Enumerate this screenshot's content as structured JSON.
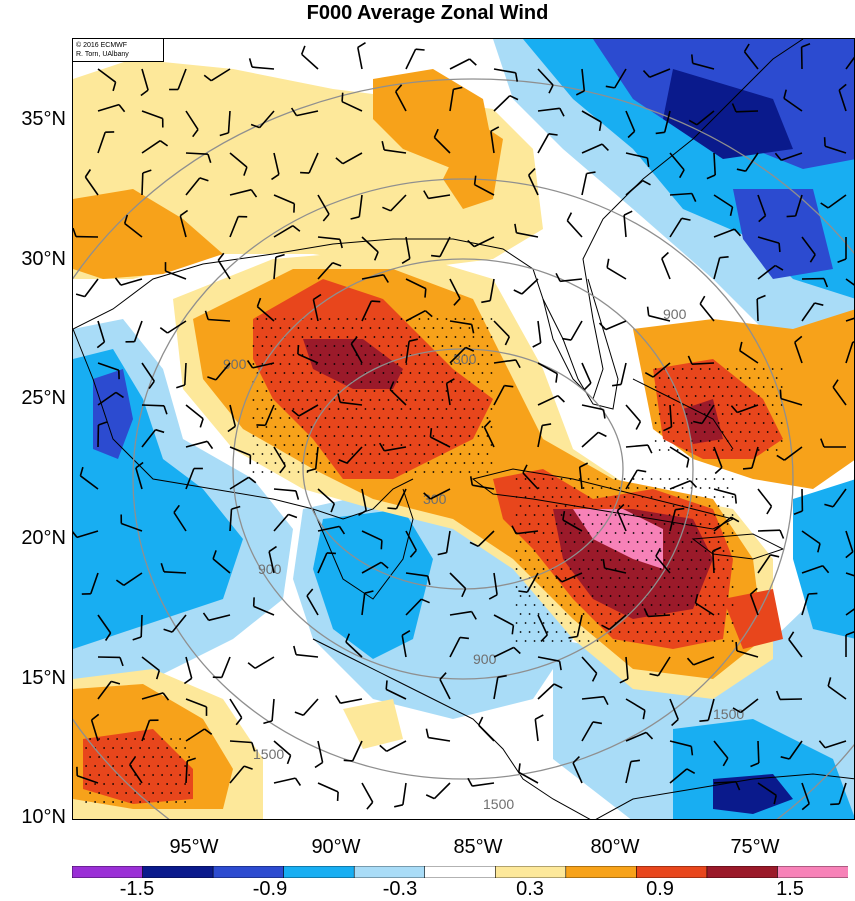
{
  "title": "F000 Average Zonal Wind",
  "credit": {
    "line1": "© 2016 ECMWF",
    "line2": "R. Torn, UAlbany"
  },
  "lat_labels": [
    "35°N",
    "30°N",
    "25°N",
    "20°N",
    "15°N",
    "10°N"
  ],
  "lon_labels": [
    "95°W",
    "90°W",
    "85°W",
    "80°W",
    "75°W"
  ],
  "colorbar": {
    "labels": [
      "-1.5",
      "-0.9",
      "-0.3",
      "0.3",
      "0.9",
      "1.5"
    ],
    "colors": [
      "#9a2fd6",
      "#0a1a8c",
      "#2c4bd0",
      "#18aef2",
      "#a9dcf7",
      "#ffffff",
      "#fde89a",
      "#f7a21a",
      "#e8461c",
      "#9b1a2a",
      "#f782b8"
    ]
  },
  "contour_labels": [
    "300",
    "300",
    "900",
    "900",
    "900",
    "900",
    "1500",
    "1500",
    "1500"
  ],
  "shading_colors": {
    "dark_blue": "#2c4bd0",
    "navy": "#0a1a8c",
    "cyan": "#18aef2",
    "light_blue": "#a9dcf7",
    "light_yellow": "#fde89a",
    "orange": "#f7a21a",
    "red_orange": "#e8461c",
    "dark_red": "#9b1a2a",
    "pink": "#f782b8",
    "contour_gray": "#8f8f8f"
  }
}
